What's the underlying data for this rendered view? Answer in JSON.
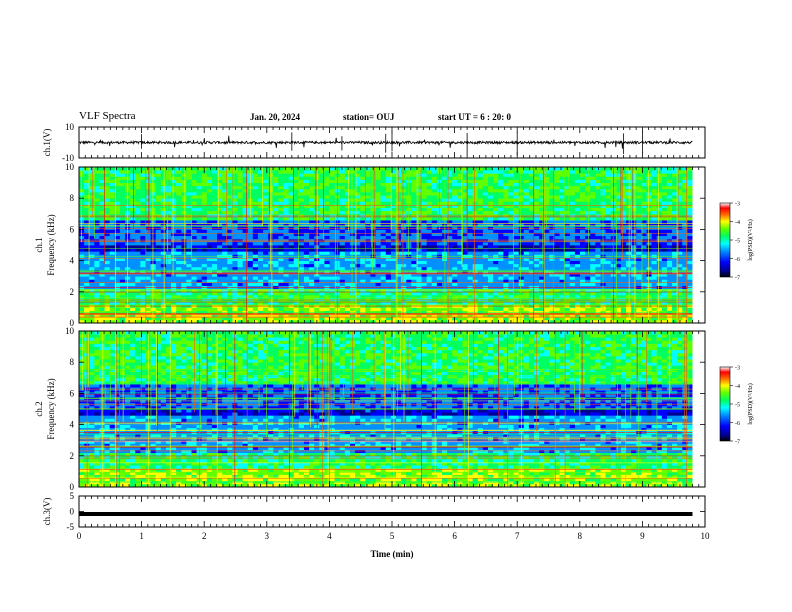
{
  "header": {
    "title": "VLF Spectra",
    "date": "Jan. 20, 2024",
    "station": "station= OUJ",
    "start_ut": "start  UT =   6 : 20: 0"
  },
  "chart_data": [
    {
      "type": "line",
      "panel": "ch1-waveform",
      "ylabel": "ch.1(V)",
      "ylim": [
        -10,
        10
      ],
      "yticks": [
        "10",
        "-10"
      ],
      "xlim": [
        0,
        10
      ],
      "color": "#000000"
    },
    {
      "type": "heatmap",
      "panel": "ch1-spectrogram",
      "ylabel": "ch.1  Frequency (kHz)",
      "ylim": [
        0,
        10
      ],
      "yticks": [
        "0",
        "2",
        "4",
        "6",
        "8",
        "10"
      ],
      "xlim": [
        0,
        10
      ],
      "colorbar": {
        "label": "log(PSD)(V²/Hz)",
        "range": [
          -7,
          -3
        ],
        "ticks": [
          "-3",
          "-4",
          "-5",
          "-6",
          "-7"
        ]
      }
    },
    {
      "type": "heatmap",
      "panel": "ch2-spectrogram",
      "ylabel": "ch.2  Frequency (kHz)",
      "ylim": [
        0,
        10
      ],
      "yticks": [
        "0",
        "2",
        "4",
        "6",
        "8",
        "10"
      ],
      "xlim": [
        0,
        10
      ],
      "colorbar": {
        "label": "log(PSD)(V²/Hz)",
        "range": [
          -7,
          -3
        ],
        "ticks": [
          "-3",
          "-4",
          "-5",
          "-6",
          "-7"
        ]
      }
    },
    {
      "type": "line",
      "panel": "ch3-waveform",
      "ylabel": "ch.3(V)",
      "ylim": [
        -5,
        5
      ],
      "yticks": [
        "5",
        "0",
        "-5"
      ],
      "xlim": [
        0,
        10
      ],
      "value": -0.8,
      "color": "#000000"
    }
  ],
  "xaxis": {
    "label": "Time (min)",
    "ticks": [
      "0",
      "1",
      "2",
      "3",
      "4",
      "5",
      "6",
      "7",
      "8",
      "9",
      "10"
    ]
  },
  "colors": {
    "colormap": [
      "#000000",
      "#00007a",
      "#0000ff",
      "#0080ff",
      "#00ffff",
      "#00ff80",
      "#40ff00",
      "#ffff00",
      "#ff8000",
      "#ff0000",
      "#ffffff"
    ]
  }
}
